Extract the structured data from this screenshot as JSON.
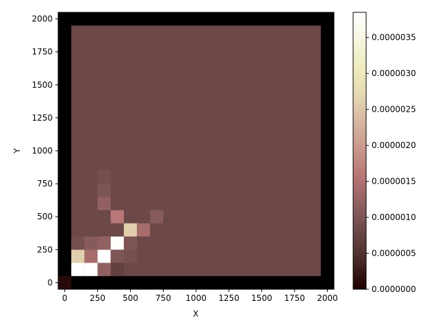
{
  "chart_data": {
    "type": "heatmap",
    "title": "",
    "xlabel": "X",
    "ylabel": "Y",
    "xlim": [
      -50,
      2050
    ],
    "ylim": [
      -50,
      2050
    ],
    "bin_width": 100,
    "x_ticks": [
      0,
      250,
      500,
      750,
      1000,
      1250,
      1500,
      1750,
      2000
    ],
    "y_ticks": [
      0,
      250,
      500,
      750,
      1000,
      1250,
      1500,
      1750,
      2000
    ],
    "colorbar": {
      "colormap": "pink",
      "min": 0,
      "max": 3.85e-06,
      "ticks": [
        "0.0000000",
        "0.0000005",
        "0.0000010",
        "0.0000015",
        "0.0000020",
        "0.0000025",
        "0.0000030",
        "0.0000035"
      ],
      "tick_values": [
        0,
        5e-07,
        1e-06,
        1.5e-06,
        2e-06,
        2.5e-06,
        3e-06,
        3.5e-06
      ]
    },
    "background_value": 8e-07,
    "cells": [
      {
        "x": 0,
        "y": 0,
        "value": 1e-07
      },
      {
        "x": 100,
        "y": 100,
        "value": 4e-06
      },
      {
        "x": 200,
        "y": 100,
        "value": 4e-06
      },
      {
        "x": 300,
        "y": 100,
        "value": 1.2e-06
      },
      {
        "x": 400,
        "y": 100,
        "value": 7e-07
      },
      {
        "x": 100,
        "y": 200,
        "value": 2.6e-06
      },
      {
        "x": 200,
        "y": 200,
        "value": 1.4e-06
      },
      {
        "x": 300,
        "y": 200,
        "value": 4e-06
      },
      {
        "x": 400,
        "y": 200,
        "value": 1e-06
      },
      {
        "x": 500,
        "y": 200,
        "value": 9e-07
      },
      {
        "x": 100,
        "y": 300,
        "value": 9e-07
      },
      {
        "x": 200,
        "y": 300,
        "value": 1.1e-06
      },
      {
        "x": 300,
        "y": 300,
        "value": 1.2e-06
      },
      {
        "x": 400,
        "y": 300,
        "value": 3.8e-06
      },
      {
        "x": 500,
        "y": 300,
        "value": 1e-06
      },
      {
        "x": 500,
        "y": 400,
        "value": 2.6e-06
      },
      {
        "x": 600,
        "y": 400,
        "value": 1.4e-06
      },
      {
        "x": 400,
        "y": 500,
        "value": 1.6e-06
      },
      {
        "x": 700,
        "y": 500,
        "value": 1.1e-06
      },
      {
        "x": 300,
        "y": 600,
        "value": 1.2e-06
      },
      {
        "x": 300,
        "y": 700,
        "value": 1e-06
      },
      {
        "x": 300,
        "y": 800,
        "value": 9e-07
      }
    ]
  }
}
